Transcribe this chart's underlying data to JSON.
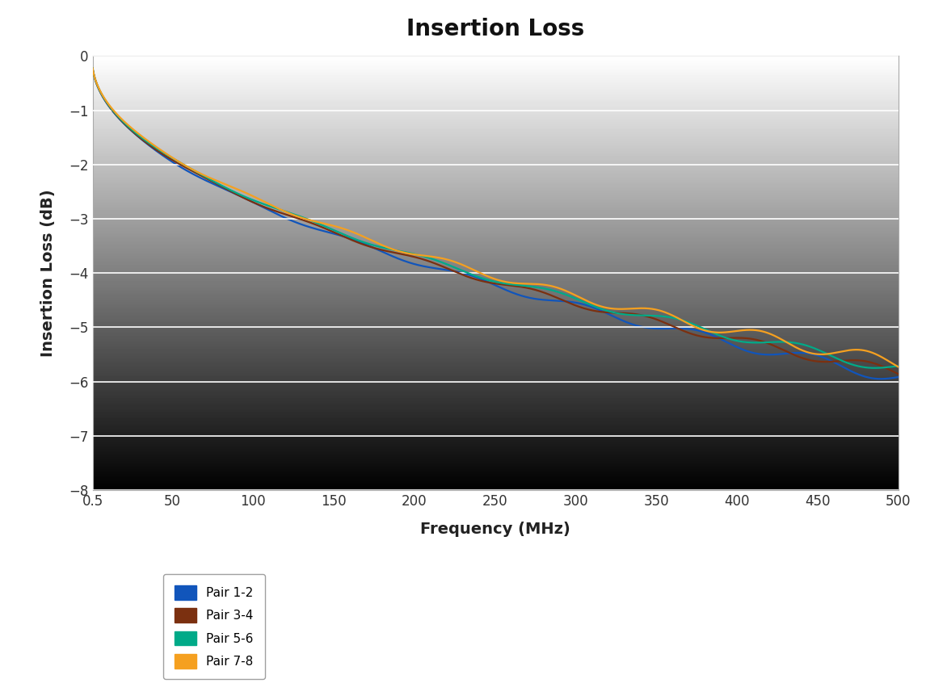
{
  "title": "Insertion Loss",
  "xlabel": "Frequency (MHz)",
  "ylabel": "Insertion Loss (dB)",
  "xlim": [
    0.5,
    500
  ],
  "ylim": [
    -8,
    0
  ],
  "yticks": [
    0,
    -1,
    -2,
    -3,
    -4,
    -5,
    -6,
    -7,
    -8
  ],
  "xticks": [
    0.5,
    50,
    100,
    150,
    200,
    250,
    300,
    350,
    400,
    450,
    500
  ],
  "xticklabels": [
    "0.5",
    "50",
    "100",
    "150",
    "200",
    "250",
    "300",
    "350",
    "400",
    "450",
    "500"
  ],
  "outer_bg": "#ffffff",
  "plot_bg_top": "#e8e8e8",
  "plot_bg_bottom": "#d0d0d0",
  "grid_color": "#ffffff",
  "series": [
    {
      "label": "Pair 1-2",
      "color": "#1155bb",
      "lw": 1.6
    },
    {
      "label": "Pair 3-4",
      "color": "#7b3010",
      "lw": 1.6
    },
    {
      "label": "Pair 5-6",
      "color": "#00aa88",
      "lw": 1.6
    },
    {
      "label": "Pair 7-8",
      "color": "#f5a020",
      "lw": 1.6
    }
  ],
  "title_fontsize": 20,
  "label_fontsize": 14,
  "tick_fontsize": 12
}
